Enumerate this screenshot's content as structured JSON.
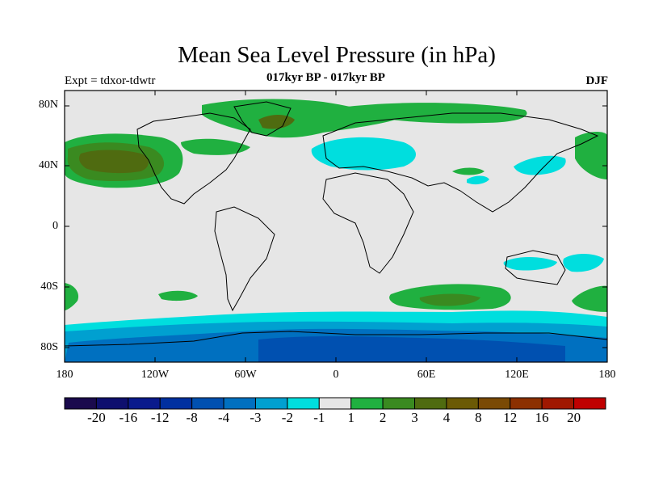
{
  "title": "Mean Sea Level Pressure (in hPa)",
  "subtitle_left": "Expt = tdxor-tdwtr",
  "subtitle_center": "017kyr BP - 017kyr BP",
  "subtitle_right": "DJF",
  "map": {
    "projection": "cylindrical equidistant",
    "lon_range": [
      -180,
      180
    ],
    "lat_range": [
      -90,
      90
    ],
    "background_color": "#e6e6e6",
    "y_ticks": [
      "80N",
      "40N",
      "0",
      "40S",
      "80S"
    ],
    "x_ticks": [
      "180",
      "120W",
      "60W",
      "0",
      "60E",
      "120E",
      "180"
    ]
  },
  "colorbar": {
    "colors": [
      "#1a0a4d",
      "#0e0f6e",
      "#0a1a8c",
      "#0030a0",
      "#0050b0",
      "#0070c0",
      "#00a0d0",
      "#00dede",
      "#e6e6e6",
      "#20b040",
      "#3a8a20",
      "#4f6b10",
      "#6b5a05",
      "#7a4a05",
      "#8c3000",
      "#a01800",
      "#c00000"
    ],
    "labels": [
      "-20",
      "-16",
      "-12",
      "-8",
      "-4",
      "-3",
      "-2",
      "-1",
      "1",
      "2",
      "3",
      "4",
      "8",
      "12",
      "16",
      "20"
    ]
  }
}
